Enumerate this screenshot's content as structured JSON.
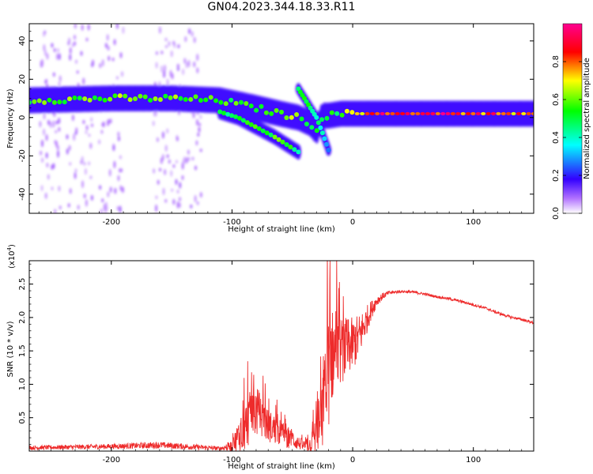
{
  "title": "GN04.2023.344.18.33.R11",
  "chart_data": [
    {
      "type": "heatmap",
      "subtype": "spectrogram",
      "title": "GN04.2023.344.18.33.R11",
      "xlabel": "Height of straight line (km)",
      "ylabel": "Frequency (Hz)",
      "xlim": [
        -268,
        150
      ],
      "ylim": [
        -50,
        49
      ],
      "xticks": [
        -200,
        -100,
        0,
        100
      ],
      "yticks": [
        -40,
        -20,
        0,
        20,
        40
      ],
      "colorbar": {
        "label": "Normalized spectral amplitude",
        "range": [
          0,
          1
        ],
        "ticks": [
          0.0,
          0.2,
          0.4,
          0.6,
          0.8
        ],
        "colormap": "rainbow",
        "stops": [
          "#ffffff",
          "#b070ff",
          "#3300ff",
          "#00ffff",
          "#00ff00",
          "#ffff00",
          "#ff0000",
          "#ff0090"
        ]
      },
      "main_band": {
        "name": "dominant frequency track",
        "x": [
          -268,
          -200,
          -150,
          -110,
          -80,
          -60,
          -45,
          -35,
          -30,
          -25,
          -20,
          -10,
          0,
          20,
          60,
          100,
          150
        ],
        "center_hz": [
          9,
          10,
          10,
          9,
          5,
          2,
          0,
          -3,
          -7,
          1,
          1,
          2,
          2,
          2,
          2,
          2,
          2
        ],
        "peak": [
          0.55,
          0.6,
          0.6,
          0.55,
          0.55,
          0.6,
          0.6,
          0.55,
          0.5,
          0.45,
          0.5,
          0.55,
          0.75,
          0.85,
          0.9,
          0.85,
          0.75
        ]
      },
      "branch_lower": {
        "name": "descending branch",
        "x": [
          -110,
          -95,
          -80,
          -65,
          -55,
          -50,
          -45
        ],
        "center_hz": [
          3,
          0,
          -5,
          -10,
          -14,
          -16,
          -18
        ],
        "peak": [
          0.45,
          0.5,
          0.55,
          0.55,
          0.55,
          0.5,
          0.45
        ]
      },
      "branch_upper": {
        "name": "rising streak",
        "x": [
          -45,
          -40,
          -35,
          -30,
          -25,
          -20
        ],
        "center_hz": [
          15,
          10,
          5,
          0,
          -8,
          -17
        ],
        "peak": [
          0.45,
          0.5,
          0.5,
          0.45,
          0.4,
          0.3
        ]
      }
    },
    {
      "type": "line",
      "xlabel": "Height of straight line (km)",
      "ylabel": "SNR (10 * v/v)",
      "multiplier": "(x10",
      "multiplier_exp": "4",
      "multiplier_close": ")",
      "xlim": [
        -268,
        150
      ],
      "ylim": [
        0,
        2.85
      ],
      "xticks": [
        -200,
        -100,
        0,
        100
      ],
      "yticks": [
        0.5,
        1.0,
        1.5,
        2.0,
        2.5
      ],
      "ytick_labels": [
        "0.5",
        "1.0",
        "1.5",
        "2.0",
        "2.5"
      ],
      "series": [
        {
          "name": "SNR",
          "color": "#ee2b2b",
          "x": [
            -268,
            -200,
            -160,
            -130,
            -110,
            -100,
            -95,
            -90,
            -85,
            -80,
            -75,
            -70,
            -65,
            -60,
            -55,
            -50,
            -45,
            -40,
            -35,
            -30,
            -25,
            -22,
            -20,
            -18,
            -15,
            -10,
            -5,
            0,
            5,
            10,
            15,
            20,
            25,
            30,
            40,
            50,
            60,
            70,
            80,
            90,
            100,
            110,
            120,
            130,
            140,
            150
          ],
          "y": [
            0.05,
            0.07,
            0.09,
            0.06,
            0.04,
            0.08,
            0.22,
            0.35,
            0.5,
            0.62,
            0.48,
            0.38,
            0.33,
            0.28,
            0.22,
            0.18,
            0.12,
            0.08,
            0.1,
            0.25,
            0.55,
            0.9,
            1.2,
            1.4,
            1.5,
            1.5,
            1.55,
            1.6,
            1.7,
            1.9,
            2.1,
            2.25,
            2.32,
            2.37,
            2.39,
            2.38,
            2.35,
            2.31,
            2.28,
            2.24,
            2.19,
            2.14,
            2.07,
            2.01,
            1.97,
            1.92
          ],
          "noise_amplitude": [
            0.03,
            0.04,
            0.05,
            0.04,
            0.03,
            0.08,
            0.22,
            0.35,
            0.4,
            0.4,
            0.3,
            0.25,
            0.22,
            0.2,
            0.17,
            0.15,
            0.1,
            0.08,
            0.12,
            0.3,
            0.55,
            0.85,
            0.9,
            0.75,
            0.6,
            0.5,
            0.45,
            0.4,
            0.35,
            0.25,
            0.15,
            0.08,
            0.05,
            0.03,
            0.02,
            0.02,
            0.02,
            0.02,
            0.02,
            0.02,
            0.02,
            0.02,
            0.02,
            0.02,
            0.02,
            0.02
          ]
        }
      ]
    }
  ]
}
